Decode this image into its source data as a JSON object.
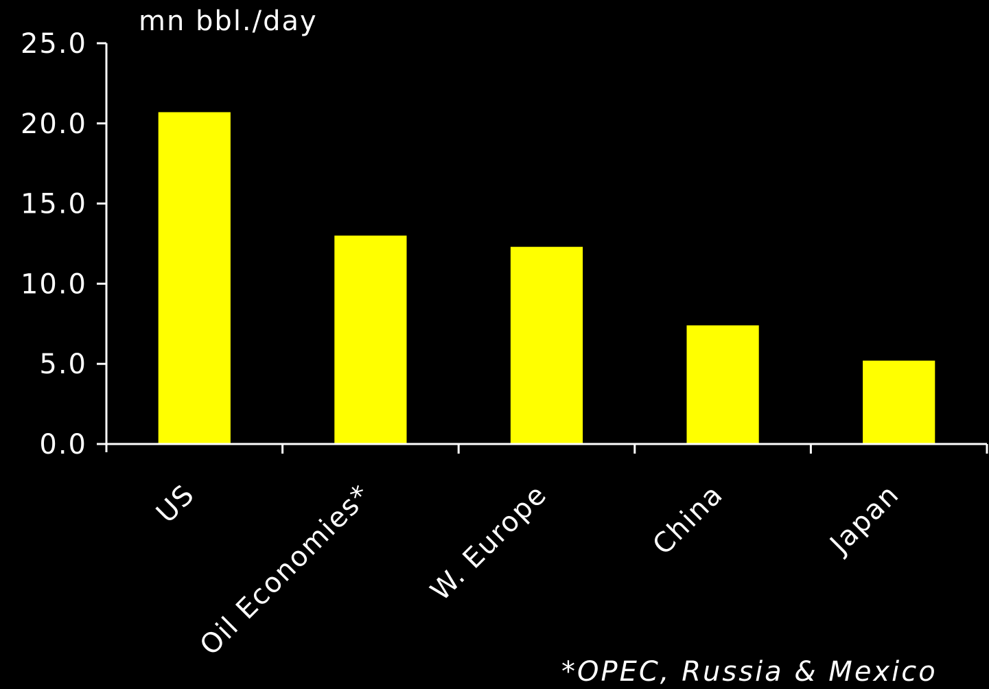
{
  "chart_data": {
    "type": "bar",
    "categories": [
      "US",
      "Oil Economies*",
      "W. Europe",
      "China",
      "Japan"
    ],
    "values": [
      20.7,
      13.0,
      12.3,
      7.4,
      5.2
    ],
    "ylim": [
      0,
      25
    ],
    "yticks": [
      "0.0",
      "5.0",
      "10.0",
      "15.0",
      "20.0",
      "25.0"
    ],
    "ylabel": "mn bbl./day",
    "xlabel": "",
    "title": "",
    "footnote": "*OPEC, Russia & Mexico",
    "grid": false,
    "legend": "none"
  },
  "colors": {
    "background": "#000000",
    "bar": "#ffff00",
    "axis": "#ffffff",
    "text": "#ffffff"
  }
}
